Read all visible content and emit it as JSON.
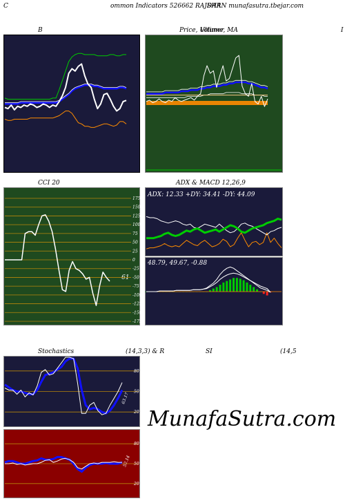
{
  "header": {
    "left": "C",
    "mid": "ommon  Indicators 526662  RAJDAR",
    "right": "SHAN  munafasutra.tbejar.com"
  },
  "panels": {
    "b": {
      "title": "B"
    },
    "price": {
      "title": "Price,  Ultimer,  MA",
      "title_overlay": "Volume",
      "edge_label": "I"
    },
    "cci": {
      "title": "CCI 20",
      "last_label": "-61"
    },
    "adx": {
      "title": "ADX  & MACD 12,26,9",
      "values": "ADX: 12.33  +DY: 34.41 -DY: 44.09"
    },
    "macd": {
      "values": "48.79,  49.67,  -0.88"
    },
    "stoch": {
      "title_left": "Stochastics",
      "title_mid": "(14,3,3) & R",
      "title_si": "SI",
      "title_right": "(14,5",
      "last_label": "63.17"
    },
    "rsi": {
      "last_label": "52.14"
    }
  },
  "brand": "MunafaSutra.com",
  "colors": {
    "navy": "#1a1a3a",
    "green_bg": "#1f4a1f",
    "red_bg": "#8b0000",
    "white": "#ffffff",
    "blue": "#1010ff",
    "green": "#00cc00",
    "orange": "#ff8c00",
    "grid_orange": "#b8860b"
  },
  "chart_data": [
    {
      "id": "bollinger",
      "type": "line",
      "title": "B",
      "series": [
        {
          "values": [
            45,
            44,
            47,
            43,
            46,
            45,
            47,
            46,
            48,
            47,
            45,
            46,
            48,
            47,
            45,
            47,
            46,
            50,
            55,
            62,
            74,
            78,
            76,
            80,
            82,
            72,
            65,
            62,
            52,
            44,
            48,
            56,
            57,
            52,
            46,
            42,
            44,
            50,
            51
          ]
        },
        {
          "values": [
            53,
            52,
            52,
            52,
            52,
            52,
            52,
            52,
            52,
            52,
            52,
            52,
            52,
            52,
            52,
            53,
            53,
            60,
            68,
            76,
            84,
            88,
            90,
            91,
            91,
            90,
            90,
            90,
            90,
            89,
            89,
            89,
            89,
            90,
            90,
            89,
            89,
            90,
            90
          ]
        },
        {
          "values": [
            48,
            48,
            48,
            48,
            48,
            49,
            49,
            49,
            49,
            49,
            49,
            49,
            49,
            49,
            49,
            49,
            49,
            50,
            52,
            54,
            56,
            59,
            61,
            62,
            63,
            64,
            64,
            64,
            63,
            63,
            62,
            61,
            61,
            61,
            61,
            61,
            62,
            62,
            61
          ]
        },
        {
          "values": [
            35,
            34,
            34,
            35,
            35,
            35,
            35,
            35,
            36,
            36,
            36,
            36,
            36,
            36,
            36,
            36,
            37,
            38,
            40,
            42,
            42,
            40,
            36,
            32,
            31,
            29,
            29,
            28,
            28,
            29,
            30,
            31,
            31,
            30,
            29,
            30,
            33,
            33,
            31
          ]
        }
      ]
    },
    {
      "id": "price_ma",
      "type": "line",
      "title": "Price,  Ultimer,  MA",
      "series": [
        {
          "values": [
            52,
            53,
            51,
            52,
            54,
            52,
            51,
            53,
            52,
            55,
            53,
            52,
            53,
            54,
            55,
            53,
            56,
            58,
            72,
            80,
            74,
            76,
            63,
            72,
            80,
            68,
            70,
            78,
            86,
            88,
            64,
            58,
            56,
            66,
            52,
            50,
            56,
            48,
            54
          ]
        },
        {
          "values": [
            58,
            58,
            58,
            58,
            58,
            58,
            59,
            59,
            59,
            59,
            59,
            60,
            60,
            60,
            61,
            61,
            61,
            62,
            62,
            63,
            63,
            64,
            64,
            64,
            65,
            65,
            66,
            66,
            67,
            67,
            67,
            67,
            66,
            66,
            65,
            64,
            63,
            63,
            62
          ]
        },
        {
          "values": [
            57,
            57,
            57,
            57,
            57,
            57,
            57,
            57,
            57,
            57,
            57,
            57,
            57,
            57,
            57,
            57,
            57,
            57,
            57,
            57,
            57,
            57,
            57,
            57,
            57,
            57,
            57,
            57,
            57,
            57,
            57,
            57,
            57,
            57,
            57,
            57,
            57,
            57,
            57
          ]
        },
        {
          "values": [
            55,
            55,
            55,
            55,
            55,
            55,
            55,
            55,
            55,
            55,
            55,
            55,
            55,
            56,
            56,
            56,
            56,
            56,
            57,
            57,
            58,
            58,
            58,
            58,
            58,
            59,
            59,
            59,
            59,
            59,
            58,
            58,
            58,
            58,
            57,
            57,
            57,
            56,
            56
          ]
        }
      ]
    },
    {
      "id": "cci",
      "type": "line",
      "title": "CCI 20",
      "y_ticks": [
        175,
        150,
        125,
        100,
        75,
        50,
        25,
        0,
        -25,
        -50,
        -75,
        -100,
        -125,
        -150,
        -175
      ],
      "ylim": [
        -175,
        175
      ],
      "series": [
        {
          "values": [
            0,
            0,
            0,
            0,
            0,
            0,
            75,
            80,
            80,
            70,
            100,
            125,
            128,
            110,
            80,
            30,
            -30,
            -85,
            -90,
            -30,
            -5,
            -25,
            -30,
            -40,
            -55,
            -50,
            -95,
            -130,
            -75,
            -35,
            -50,
            -61
          ]
        }
      ]
    },
    {
      "id": "adx",
      "type": "line",
      "series": [
        {
          "values": [
            10,
            12,
            12,
            14,
            16,
            20,
            16,
            14,
            16,
            14,
            20,
            26,
            22,
            18,
            16,
            22,
            26,
            20,
            14,
            16,
            20,
            28,
            24,
            14,
            18,
            30,
            40,
            26,
            14,
            22,
            24,
            18,
            22,
            40,
            22,
            30,
            20,
            12
          ]
        },
        {
          "values": [
            30,
            30,
            30,
            32,
            34,
            38,
            40,
            36,
            34,
            36,
            40,
            44,
            42,
            46,
            48,
            44,
            40,
            42,
            44,
            46,
            42,
            46,
            50,
            54,
            52,
            48,
            42,
            40,
            44,
            48,
            50,
            52,
            54,
            58,
            60,
            62,
            66,
            64
          ]
        },
        {
          "values": [
            70,
            68,
            68,
            66,
            62,
            60,
            58,
            60,
            62,
            60,
            56,
            54,
            56,
            50,
            48,
            52,
            56,
            54,
            52,
            50,
            56,
            50,
            44,
            40,
            42,
            48,
            56,
            58,
            54,
            52,
            48,
            44,
            40,
            36,
            42,
            44,
            48,
            50
          ]
        }
      ]
    },
    {
      "id": "macd",
      "type": "bar",
      "series": [
        {
          "values": [
            0,
            0,
            0,
            0,
            0,
            0,
            0,
            0,
            0,
            0,
            0,
            0,
            0,
            0,
            0,
            0,
            0,
            0,
            0,
            2,
            4,
            6,
            9,
            12,
            14,
            16,
            18,
            18,
            17,
            15,
            12,
            9,
            6,
            3,
            0,
            -3,
            -5,
            -1
          ]
        },
        {
          "values": [
            0,
            0,
            0,
            0,
            1,
            1,
            1,
            1,
            1,
            2,
            2,
            2,
            2,
            2,
            3,
            3,
            3,
            4,
            6,
            10,
            14,
            20,
            28,
            34,
            38,
            40,
            38,
            34,
            30,
            26,
            22,
            18,
            14,
            10,
            6,
            4,
            2,
            -1
          ]
        },
        {
          "values": [
            0,
            0,
            0,
            0,
            1,
            1,
            1,
            1,
            1,
            2,
            2,
            2,
            2,
            2,
            3,
            3,
            3,
            4,
            5,
            8,
            11,
            15,
            20,
            24,
            27,
            29,
            30,
            29,
            27,
            24,
            21,
            18,
            15,
            12,
            9,
            7,
            5,
            -1
          ]
        }
      ]
    },
    {
      "id": "stochastics",
      "type": "line",
      "y_ticks": [
        80,
        50,
        20
      ],
      "ylim": [
        0,
        100
      ],
      "series": [
        {
          "values": [
            55,
            52,
            52,
            46,
            52,
            42,
            48,
            45,
            58,
            78,
            82,
            74,
            76,
            84,
            92,
            100,
            100,
            98,
            62,
            18,
            18,
            30,
            34,
            22,
            16,
            18,
            30,
            40,
            50,
            63
          ]
        },
        {
          "values": [
            60,
            56,
            52,
            50,
            50,
            48,
            46,
            46,
            52,
            64,
            74,
            76,
            78,
            82,
            86,
            94,
            98,
            98,
            84,
            52,
            30,
            24,
            26,
            24,
            20,
            18,
            22,
            30,
            40,
            52
          ]
        }
      ]
    },
    {
      "id": "rsi",
      "type": "line",
      "y_ticks": [
        80,
        50,
        20
      ],
      "ylim": [
        0,
        100
      ],
      "series": [
        {
          "values": [
            50,
            50,
            51,
            49,
            50,
            48,
            49,
            50,
            50,
            52,
            55,
            56,
            52,
            54,
            57,
            58,
            56,
            52,
            44,
            42,
            46,
            50,
            51,
            50,
            52,
            52,
            52,
            53,
            52,
            52
          ]
        },
        {
          "values": [
            52,
            54,
            54,
            52,
            50,
            50,
            52,
            54,
            55,
            58,
            56,
            56,
            57,
            60,
            60,
            58,
            56,
            50,
            42,
            38,
            44,
            48,
            50,
            50,
            50,
            51,
            50,
            50,
            50,
            52
          ]
        }
      ]
    }
  ]
}
